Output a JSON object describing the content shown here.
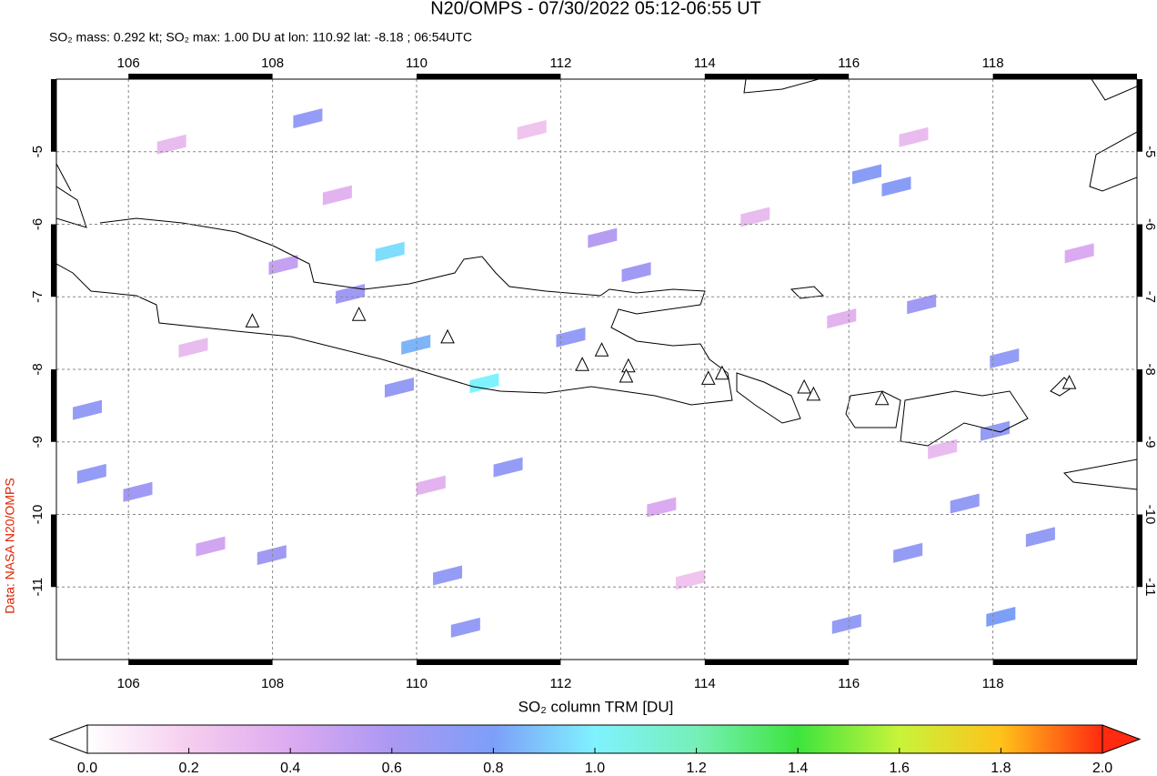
{
  "chart_data": {
    "type": "map",
    "title": "N20/OMPS - 07/30/2022 05:12-06:55 UT",
    "subtitle": "SO₂ mass: 0.292 kt; SO₂ max: 1.00 DU at lon: 110.92 lat: -8.18 ; 06:54UTC",
    "credit": "Data: NASA N20/OMPS",
    "colorbar_label": "SO₂ column TRM [DU]",
    "xlim": [
      105,
      120
    ],
    "ylim": [
      -12,
      -4
    ],
    "xticks": [
      106,
      108,
      110,
      112,
      114,
      116,
      118
    ],
    "yticks": [
      -5,
      -6,
      -7,
      -8,
      -9,
      -10,
      -11
    ],
    "grid": true,
    "clim": [
      0,
      2
    ],
    "cticks": [
      {
        "value": 0,
        "label": "0.0"
      },
      {
        "value": 0.2,
        "label": "0.2"
      },
      {
        "value": 0.4,
        "label": "0.4"
      },
      {
        "value": 0.6,
        "label": "0.6"
      },
      {
        "value": 0.8,
        "label": "0.8"
      },
      {
        "value": 1,
        "label": "1.0"
      },
      {
        "value": 1.2,
        "label": "1.2"
      },
      {
        "value": 1.4,
        "label": "1.4"
      },
      {
        "value": 1.6,
        "label": "1.6"
      },
      {
        "value": 1.8,
        "label": "1.8"
      },
      {
        "value": 2,
        "label": "2.0"
      }
    ],
    "colormap": [
      "#ffffff",
      "#f6cdef",
      "#dcaaf0",
      "#ab98f2",
      "#7d9ff8",
      "#7ff2ff",
      "#76f0b8",
      "#3ee43e",
      "#c8f43a",
      "#ffc21a",
      "#ff2a10"
    ],
    "volcanoes": {
      "lon": [
        107.72,
        109.2,
        110.43,
        112.3,
        112.57,
        112.94,
        112.91,
        114.05,
        114.24,
        115.38,
        115.51,
        116.46,
        119.06
      ],
      "lat": [
        -7.34,
        -7.25,
        -7.56,
        -7.94,
        -7.74,
        -7.96,
        -8.1,
        -8.13,
        -8.06,
        -8.25,
        -8.35,
        -8.41,
        -8.19
      ]
    },
    "cells": {
      "lon": [
        108.49,
        109.63,
        109.08,
        109.99,
        110.94,
        109.76,
        111.27,
        112.14,
        113.05,
        116.25,
        116.66,
        105.49,
        106.13,
        105.43,
        107.99,
        110.43,
        110.68,
        116.82,
        117.61,
        118.66,
        118.11,
        115.97,
        118.03,
        118.16,
        117.01,
        112.58,
        108.15,
        107.14,
        106.6,
        108.9,
        111.6,
        113.4,
        114.7,
        115.9,
        117.3,
        119.2,
        106.9,
        110.2,
        113.8,
        116.9
      ],
      "lat": [
        -4.54,
        -6.38,
        -6.96,
        -7.66,
        -8.19,
        -8.25,
        -9.35,
        -7.56,
        -6.66,
        -5.31,
        -5.48,
        -9.44,
        -9.69,
        -8.56,
        -10.56,
        -10.84,
        -11.56,
        -10.53,
        -9.85,
        -10.31,
        -11.41,
        -11.51,
        -8.85,
        -7.85,
        -7.1,
        -6.19,
        -6.56,
        -10.44,
        -4.9,
        -5.6,
        -4.7,
        -9.9,
        -5.9,
        -7.3,
        -9.1,
        -6.4,
        -7.7,
        -9.6,
        -10.9,
        -4.8
      ],
      "values": [
        0.7,
        0.95,
        0.65,
        0.85,
        1.0,
        0.7,
        0.7,
        0.7,
        0.65,
        0.75,
        0.75,
        0.7,
        0.65,
        0.7,
        0.65,
        0.7,
        0.7,
        0.7,
        0.7,
        0.7,
        0.8,
        0.7,
        0.7,
        0.7,
        0.65,
        0.55,
        0.5,
        0.45,
        0.3,
        0.35,
        0.25,
        0.4,
        0.3,
        0.35,
        0.3,
        0.4,
        0.3,
        0.35,
        0.25,
        0.3
      ]
    }
  }
}
